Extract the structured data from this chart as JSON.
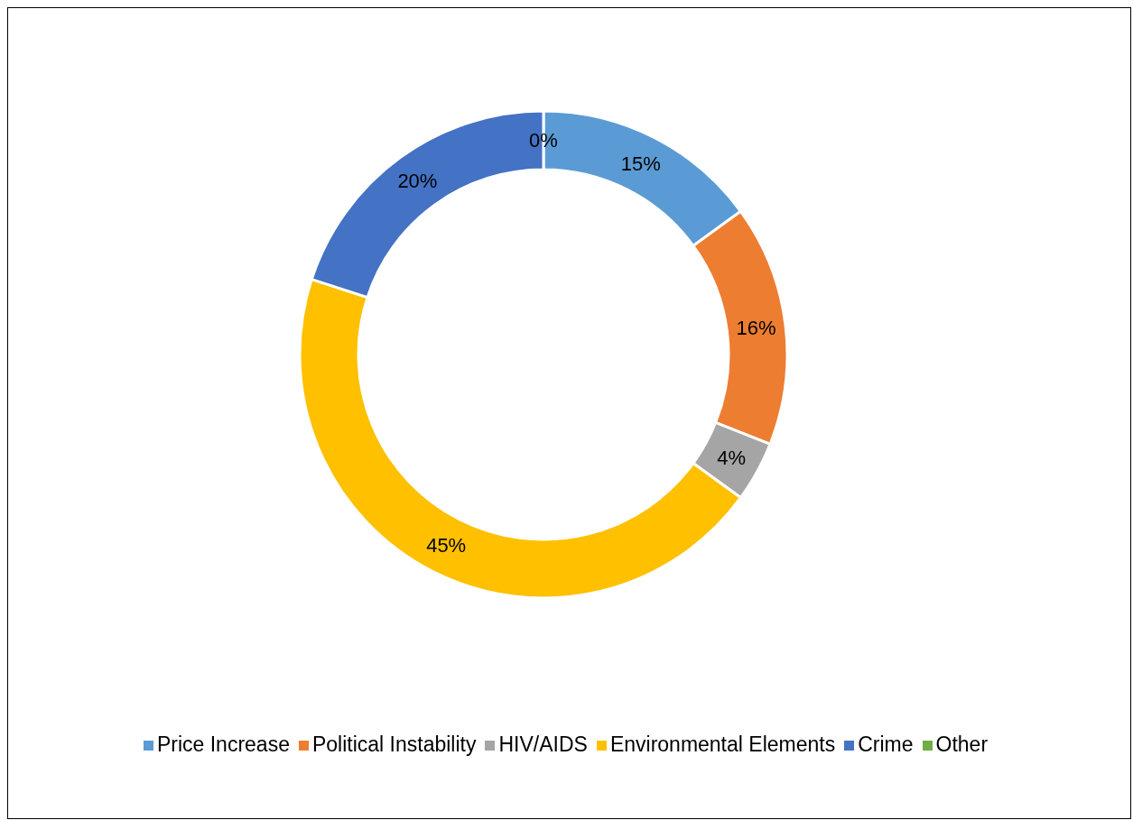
{
  "chart_data": {
    "type": "donut",
    "categories": [
      "Price Increase",
      "Political Instability",
      "HIV/AIDS",
      "Environmental Elements",
      "Crime",
      "Other"
    ],
    "values": [
      15,
      16,
      4,
      45,
      20,
      0
    ],
    "colors": [
      "#5b9bd5",
      "#ed7d31",
      "#a5a5a5",
      "#ffc000",
      "#4472c4",
      "#70ad47"
    ],
    "value_labels": [
      "15%",
      "16%",
      "4%",
      "45%",
      "20%",
      "0%"
    ],
    "legend": "bottom"
  }
}
